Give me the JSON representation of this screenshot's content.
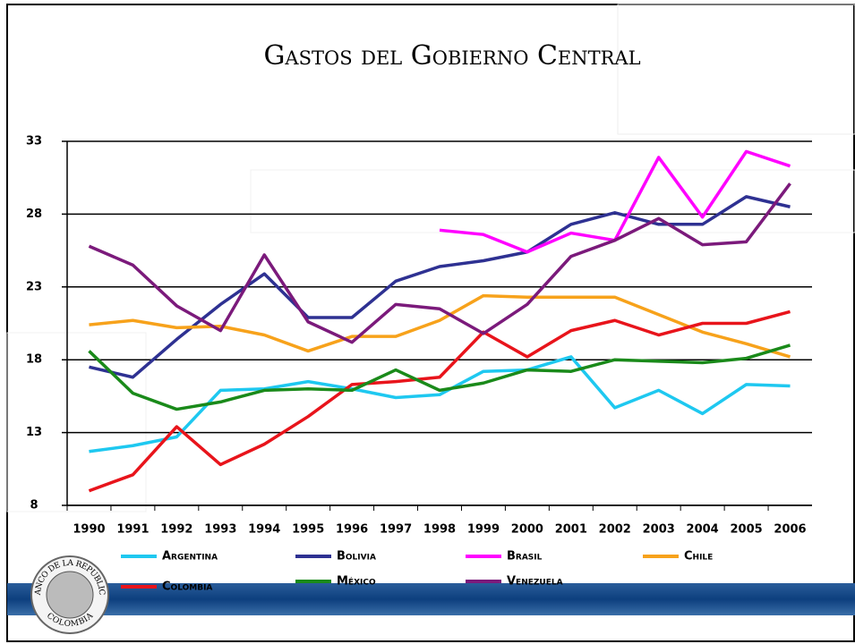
{
  "chart_data": {
    "type": "line",
    "title": "Gastos del Gobierno Central",
    "categories": [
      "1990",
      "1991",
      "1992",
      "1993",
      "1994",
      "1995",
      "1996",
      "1997",
      "1998",
      "1999",
      "2000",
      "2001",
      "2002",
      "2003",
      "2004",
      "2005",
      "2006"
    ],
    "ylim": [
      8,
      33
    ],
    "yticks": [
      8,
      13,
      18,
      23,
      28,
      33
    ],
    "grid": true,
    "series": [
      {
        "name": "Argentina",
        "color": "#1ec8f0",
        "values": [
          11.7,
          12.1,
          12.7,
          15.9,
          16.0,
          16.5,
          16.0,
          15.4,
          15.6,
          17.2,
          17.3,
          18.2,
          14.7,
          15.9,
          14.3,
          16.3,
          16.2
        ]
      },
      {
        "name": "Bolivia",
        "color": "#2e3192",
        "values": [
          17.5,
          16.8,
          19.4,
          21.8,
          23.9,
          20.9,
          20.9,
          23.4,
          24.4,
          24.8,
          25.4,
          27.3,
          28.1,
          27.3,
          27.3,
          29.2,
          28.5
        ]
      },
      {
        "name": "Brasil",
        "color": "#ff00ff",
        "values": [
          null,
          null,
          null,
          null,
          null,
          null,
          null,
          null,
          26.9,
          26.6,
          25.4,
          26.7,
          26.2,
          31.9,
          27.8,
          32.3,
          31.3
        ]
      },
      {
        "name": "Chile",
        "color": "#f7a21b",
        "values": [
          20.4,
          20.7,
          20.2,
          20.3,
          19.7,
          18.6,
          19.6,
          19.6,
          20.7,
          22.4,
          22.3,
          22.3,
          22.3,
          21.1,
          19.9,
          19.1,
          18.2
        ]
      },
      {
        "name": "Colombia",
        "color": "#e8141b",
        "values": [
          9.0,
          10.1,
          13.4,
          10.8,
          12.2,
          14.1,
          16.3,
          16.5,
          16.8,
          19.9,
          18.2,
          20.0,
          20.7,
          19.7,
          20.5,
          20.5,
          21.3
        ]
      },
      {
        "name": "México",
        "color": "#1a8a1a",
        "values": [
          18.6,
          15.7,
          14.6,
          15.1,
          15.9,
          16.0,
          15.9,
          17.3,
          15.9,
          16.4,
          17.3,
          17.2,
          18.0,
          17.9,
          17.8,
          18.1,
          19.0
        ]
      },
      {
        "name": "Venezuela",
        "color": "#7b1a7b",
        "values": [
          25.8,
          24.5,
          21.7,
          20.0,
          25.2,
          20.6,
          19.2,
          21.8,
          21.5,
          19.8,
          21.8,
          25.1,
          26.2,
          27.7,
          25.9,
          26.1,
          30.1
        ]
      }
    ]
  },
  "logo": {
    "top_text": "BANCO DE LA REPUBLICA",
    "bottom_text": "COLOMBIA"
  }
}
